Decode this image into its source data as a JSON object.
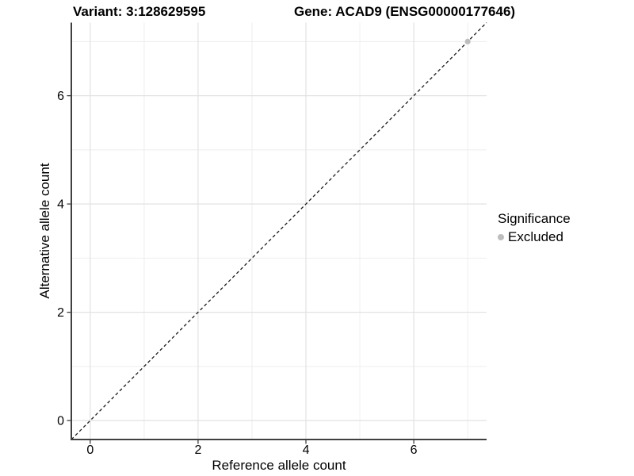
{
  "titles": {
    "variant": "Variant: 3:128629595",
    "gene": "Gene: ACAD9 (ENSG00000177646)"
  },
  "chart_data": {
    "type": "scatter",
    "xlabel": "Reference allele count",
    "ylabel": "Alternative allele count",
    "xlim": [
      -0.35,
      7.35
    ],
    "ylim": [
      -0.35,
      7.35
    ],
    "x_ticks": [
      0,
      2,
      4,
      6
    ],
    "y_ticks": [
      0,
      2,
      4,
      6
    ],
    "x_minor_ticks": [
      1,
      3,
      5,
      7
    ],
    "y_minor_ticks": [
      1,
      3,
      5,
      7
    ],
    "grid": true,
    "reference_line": {
      "type": "abline",
      "intercept": 0,
      "slope": 1,
      "style": "dashed"
    },
    "series": [
      {
        "name": "Excluded",
        "color": "#bdbdbd",
        "points": [
          {
            "x": 7,
            "y": 7
          }
        ]
      }
    ],
    "legend": {
      "title": "Significance",
      "position": "right",
      "items": [
        {
          "label": "Excluded",
          "color": "#bdbdbd"
        }
      ]
    }
  },
  "colors": {
    "background": "#ffffff",
    "grid_major": "#e2e2e2",
    "grid_minor": "#eeeeee",
    "axis_line": "#404040",
    "reference_line": "#1a1a1a",
    "point": "#bdbdbd",
    "text": "#000000"
  }
}
